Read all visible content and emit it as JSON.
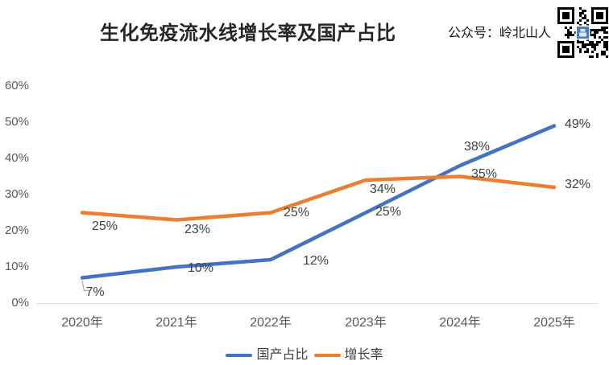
{
  "header": {
    "account_label": "公众号：岭北山人"
  },
  "chart_data": {
    "type": "line",
    "title": "生化免疫流水线增长率及国产占比",
    "categories": [
      "2020年",
      "2021年",
      "2022年",
      "2023年",
      "2024年",
      "2025年"
    ],
    "series": [
      {
        "name": "国产占比",
        "color": "#4472C4",
        "values": [
          7,
          10,
          12,
          25,
          38,
          49
        ]
      },
      {
        "name": "增长率",
        "color": "#ED7D31",
        "values": [
          25,
          23,
          25,
          34,
          35,
          32
        ]
      }
    ],
    "yticks": [
      "0%",
      "10%",
      "20%",
      "30%",
      "40%",
      "50%",
      "60%"
    ],
    "ylim": [
      0,
      60
    ],
    "grid": false,
    "legend_position": "bottom",
    "axis_color": "#D9D9D9",
    "label_color": "#404040"
  }
}
